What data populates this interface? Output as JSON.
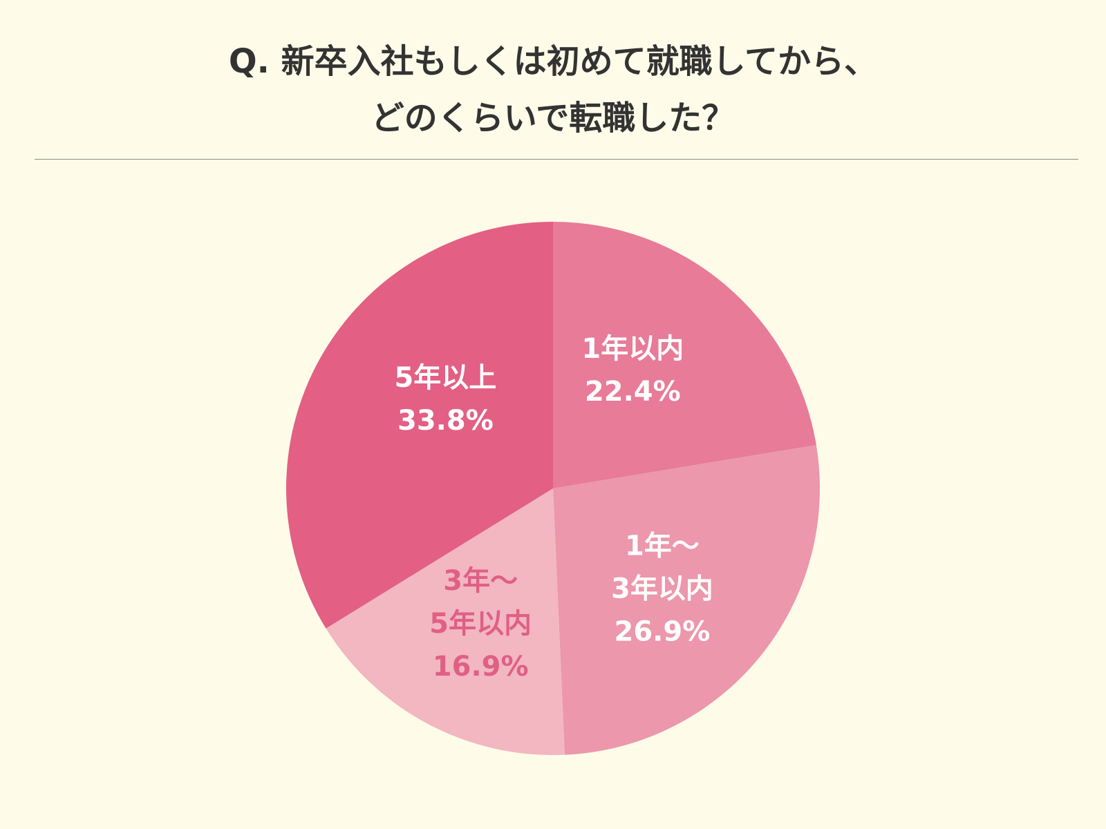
{
  "title_lines": [
    "Q. 新卒入社もしくは初めて就職してから、",
    "どのくらいで転職した？"
  ],
  "colors": {
    "background": "#fefce9",
    "title_text": "#333333",
    "divider": "#8a8a8a"
  },
  "chart_data": {
    "type": "pie",
    "title": "Q. 新卒入社もしくは初めて就職してから、どのくらいで転職した？",
    "start": "12 o'clock",
    "direction": "clockwise",
    "legend": "none",
    "slices": [
      {
        "label_lines": [
          "1年以内"
        ],
        "value": 22.4,
        "value_label": "22.4%",
        "color": "#e77b98",
        "text_color": "#ffffff"
      },
      {
        "label_lines": [
          "1年～",
          "3年以内"
        ],
        "value": 26.9,
        "value_label": "26.9%",
        "color": "#ec97ab",
        "text_color": "#ffffff"
      },
      {
        "label_lines": [
          "3年～",
          "5年以内"
        ],
        "value": 16.9,
        "value_label": "16.9%",
        "color": "#f2b7c1",
        "text_color": "#e05f84"
      },
      {
        "label_lines": [
          "5年以上"
        ],
        "value": 33.8,
        "value_label": "33.8%",
        "color": "#e35f84",
        "text_color": "#ffffff"
      }
    ]
  }
}
